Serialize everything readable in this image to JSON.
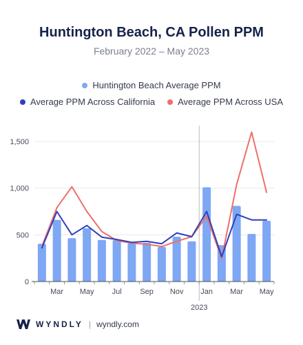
{
  "header": {
    "title": "Huntington Beach, CA Pollen PPM",
    "subtitle": "February 2022 – May 2023"
  },
  "legend": {
    "bar_label": "Huntington Beach Average PPM",
    "ca_label": "Average PPM Across California",
    "usa_label": "Average PPM Across USA"
  },
  "footer": {
    "brand": "WYNDLY",
    "separator": "|",
    "site": "wyndly.com"
  },
  "colors": {
    "bar": "#7ea7f4",
    "california": "#2f3fbd",
    "usa": "#ef6f68",
    "divider": "#b5b9c2"
  },
  "chart_data": {
    "type": "bar",
    "x": [
      "Feb 2022",
      "Mar 2022",
      "Apr 2022",
      "May 2022",
      "Jun 2022",
      "Jul 2022",
      "Aug 2022",
      "Sep 2022",
      "Oct 2022",
      "Nov 2022",
      "Dec 2022",
      "Jan 2023",
      "Feb 2023",
      "Mar 2023",
      "Apr 2023",
      "May 2023"
    ],
    "series": [
      {
        "name": "Huntington Beach Average PPM",
        "kind": "bar",
        "values": [
          405,
          660,
          465,
          570,
          445,
          445,
          410,
          415,
          370,
          480,
          430,
          1010,
          390,
          810,
          510,
          650
        ]
      },
      {
        "name": "Average PPM Across California",
        "kind": "line",
        "values": [
          360,
          750,
          500,
          600,
          475,
          450,
          420,
          430,
          405,
          520,
          480,
          750,
          265,
          720,
          660,
          660
        ]
      },
      {
        "name": "Average PPM Across USA",
        "kind": "line",
        "values": [
          380,
          790,
          1015,
          750,
          535,
          440,
          410,
          400,
          375,
          430,
          480,
          700,
          245,
          1040,
          1600,
          955
        ]
      }
    ],
    "xticks": [
      {
        "at": 1,
        "label": "Mar"
      },
      {
        "at": 3,
        "label": "May"
      },
      {
        "at": 5,
        "label": "Jul"
      },
      {
        "at": 7,
        "label": "Sep"
      },
      {
        "at": 9,
        "label": "Nov"
      },
      {
        "at": 11,
        "label": "Jan"
      },
      {
        "at": 13,
        "label": "Mar"
      },
      {
        "at": 15,
        "label": "May"
      }
    ],
    "year_label": "2023",
    "yticks": [
      {
        "value": 0,
        "label": "0"
      },
      {
        "value": 500,
        "label": "500"
      },
      {
        "value": 1000,
        "label": "1,000"
      },
      {
        "value": 1500,
        "label": "1,500"
      }
    ],
    "ylim": [
      0,
      1670
    ],
    "year_divider_before": 11,
    "legend_position": "top"
  }
}
